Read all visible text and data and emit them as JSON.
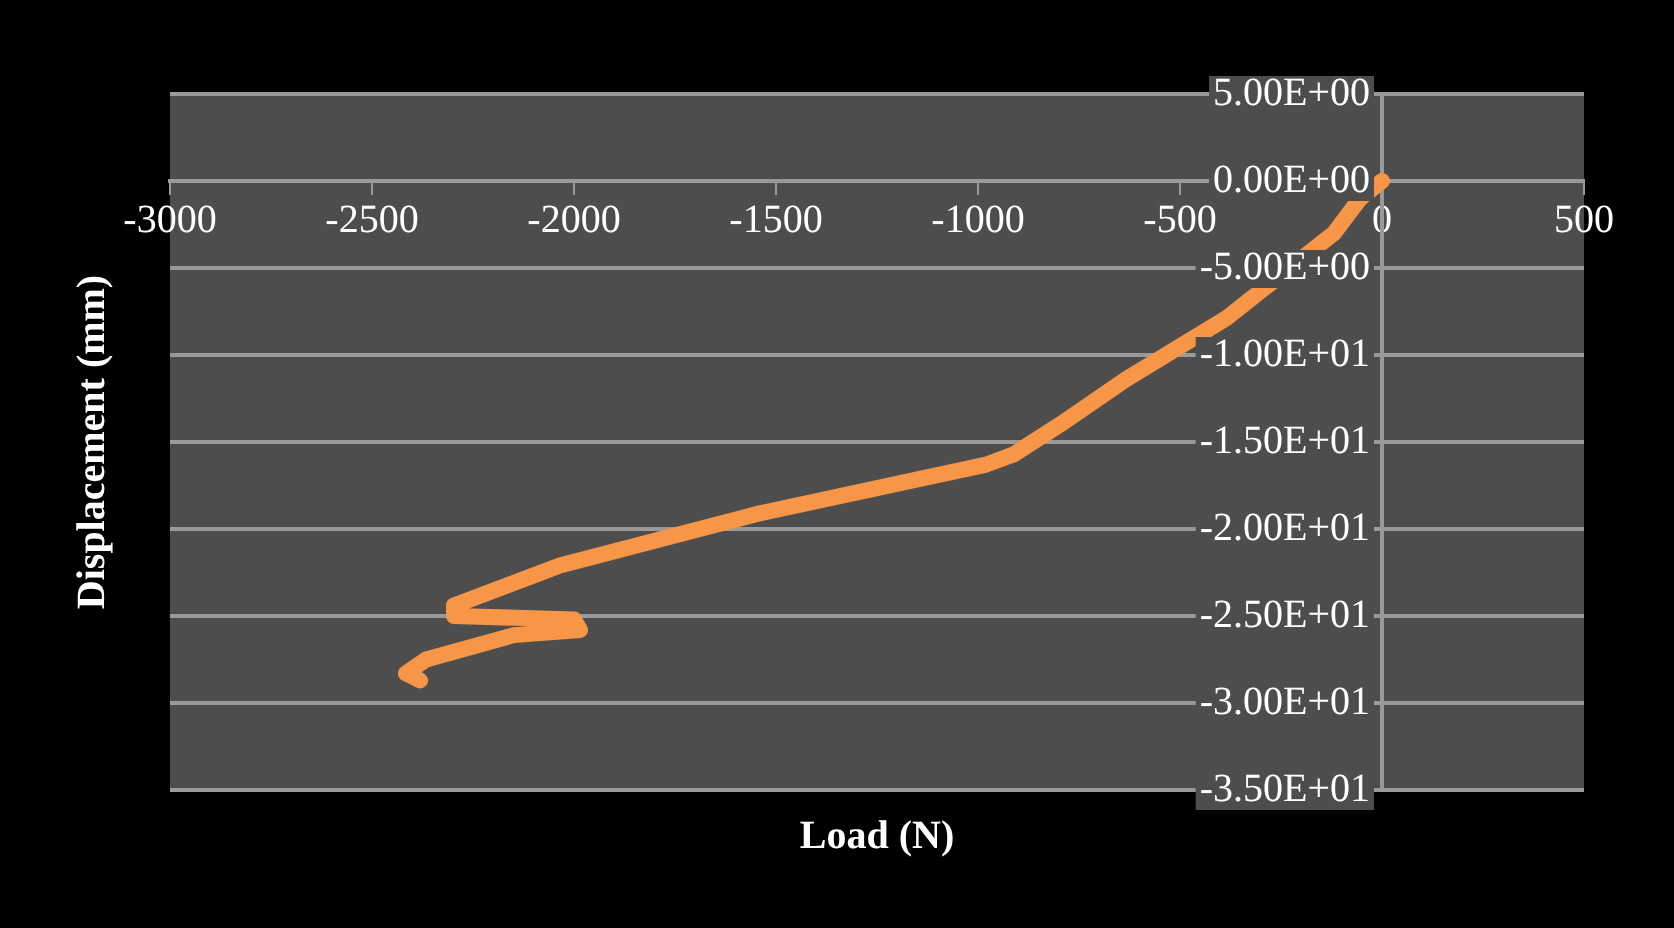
{
  "chart_data": {
    "type": "line",
    "xlabel": "Load (N)",
    "ylabel": "Displacement (mm)",
    "x": [
      0,
      -54,
      -119,
      -386,
      -634,
      -797,
      -911,
      -980,
      -1540,
      -2035,
      -2297,
      -2297,
      -2000,
      -1985,
      -2149,
      -2366,
      -2416,
      -2381
    ],
    "values": [
      0,
      -1.0,
      -3.0,
      -7.9,
      -11.4,
      -14.0,
      -15.7,
      -16.3,
      -19.1,
      -22.1,
      -24.4,
      -25.0,
      -25.2,
      -25.8,
      -26.1,
      -27.5,
      -28.3,
      -28.7
    ],
    "color": "#f79646",
    "marker": "none",
    "line_style": "solid",
    "grid": "y",
    "xlim": [
      -3000,
      500
    ],
    "xticks": [
      -3000,
      -2500,
      -2000,
      -1500,
      -1000,
      -500,
      0,
      500
    ],
    "ylim": [
      -35,
      5
    ],
    "yticks": [
      {
        "value": 5,
        "label": "5.00E+00"
      },
      {
        "value": 0,
        "label": "0.00E+00"
      },
      {
        "value": -5,
        "label": "-5.00E+00"
      },
      {
        "value": -10,
        "label": "-1.00E+01"
      },
      {
        "value": -15,
        "label": "-1.50E+01"
      },
      {
        "value": -20,
        "label": "-2.00E+01"
      },
      {
        "value": -25,
        "label": "-2.50E+01"
      },
      {
        "value": -30,
        "label": "-3.00E+01"
      },
      {
        "value": -35,
        "label": "-3.50E+01"
      }
    ]
  }
}
